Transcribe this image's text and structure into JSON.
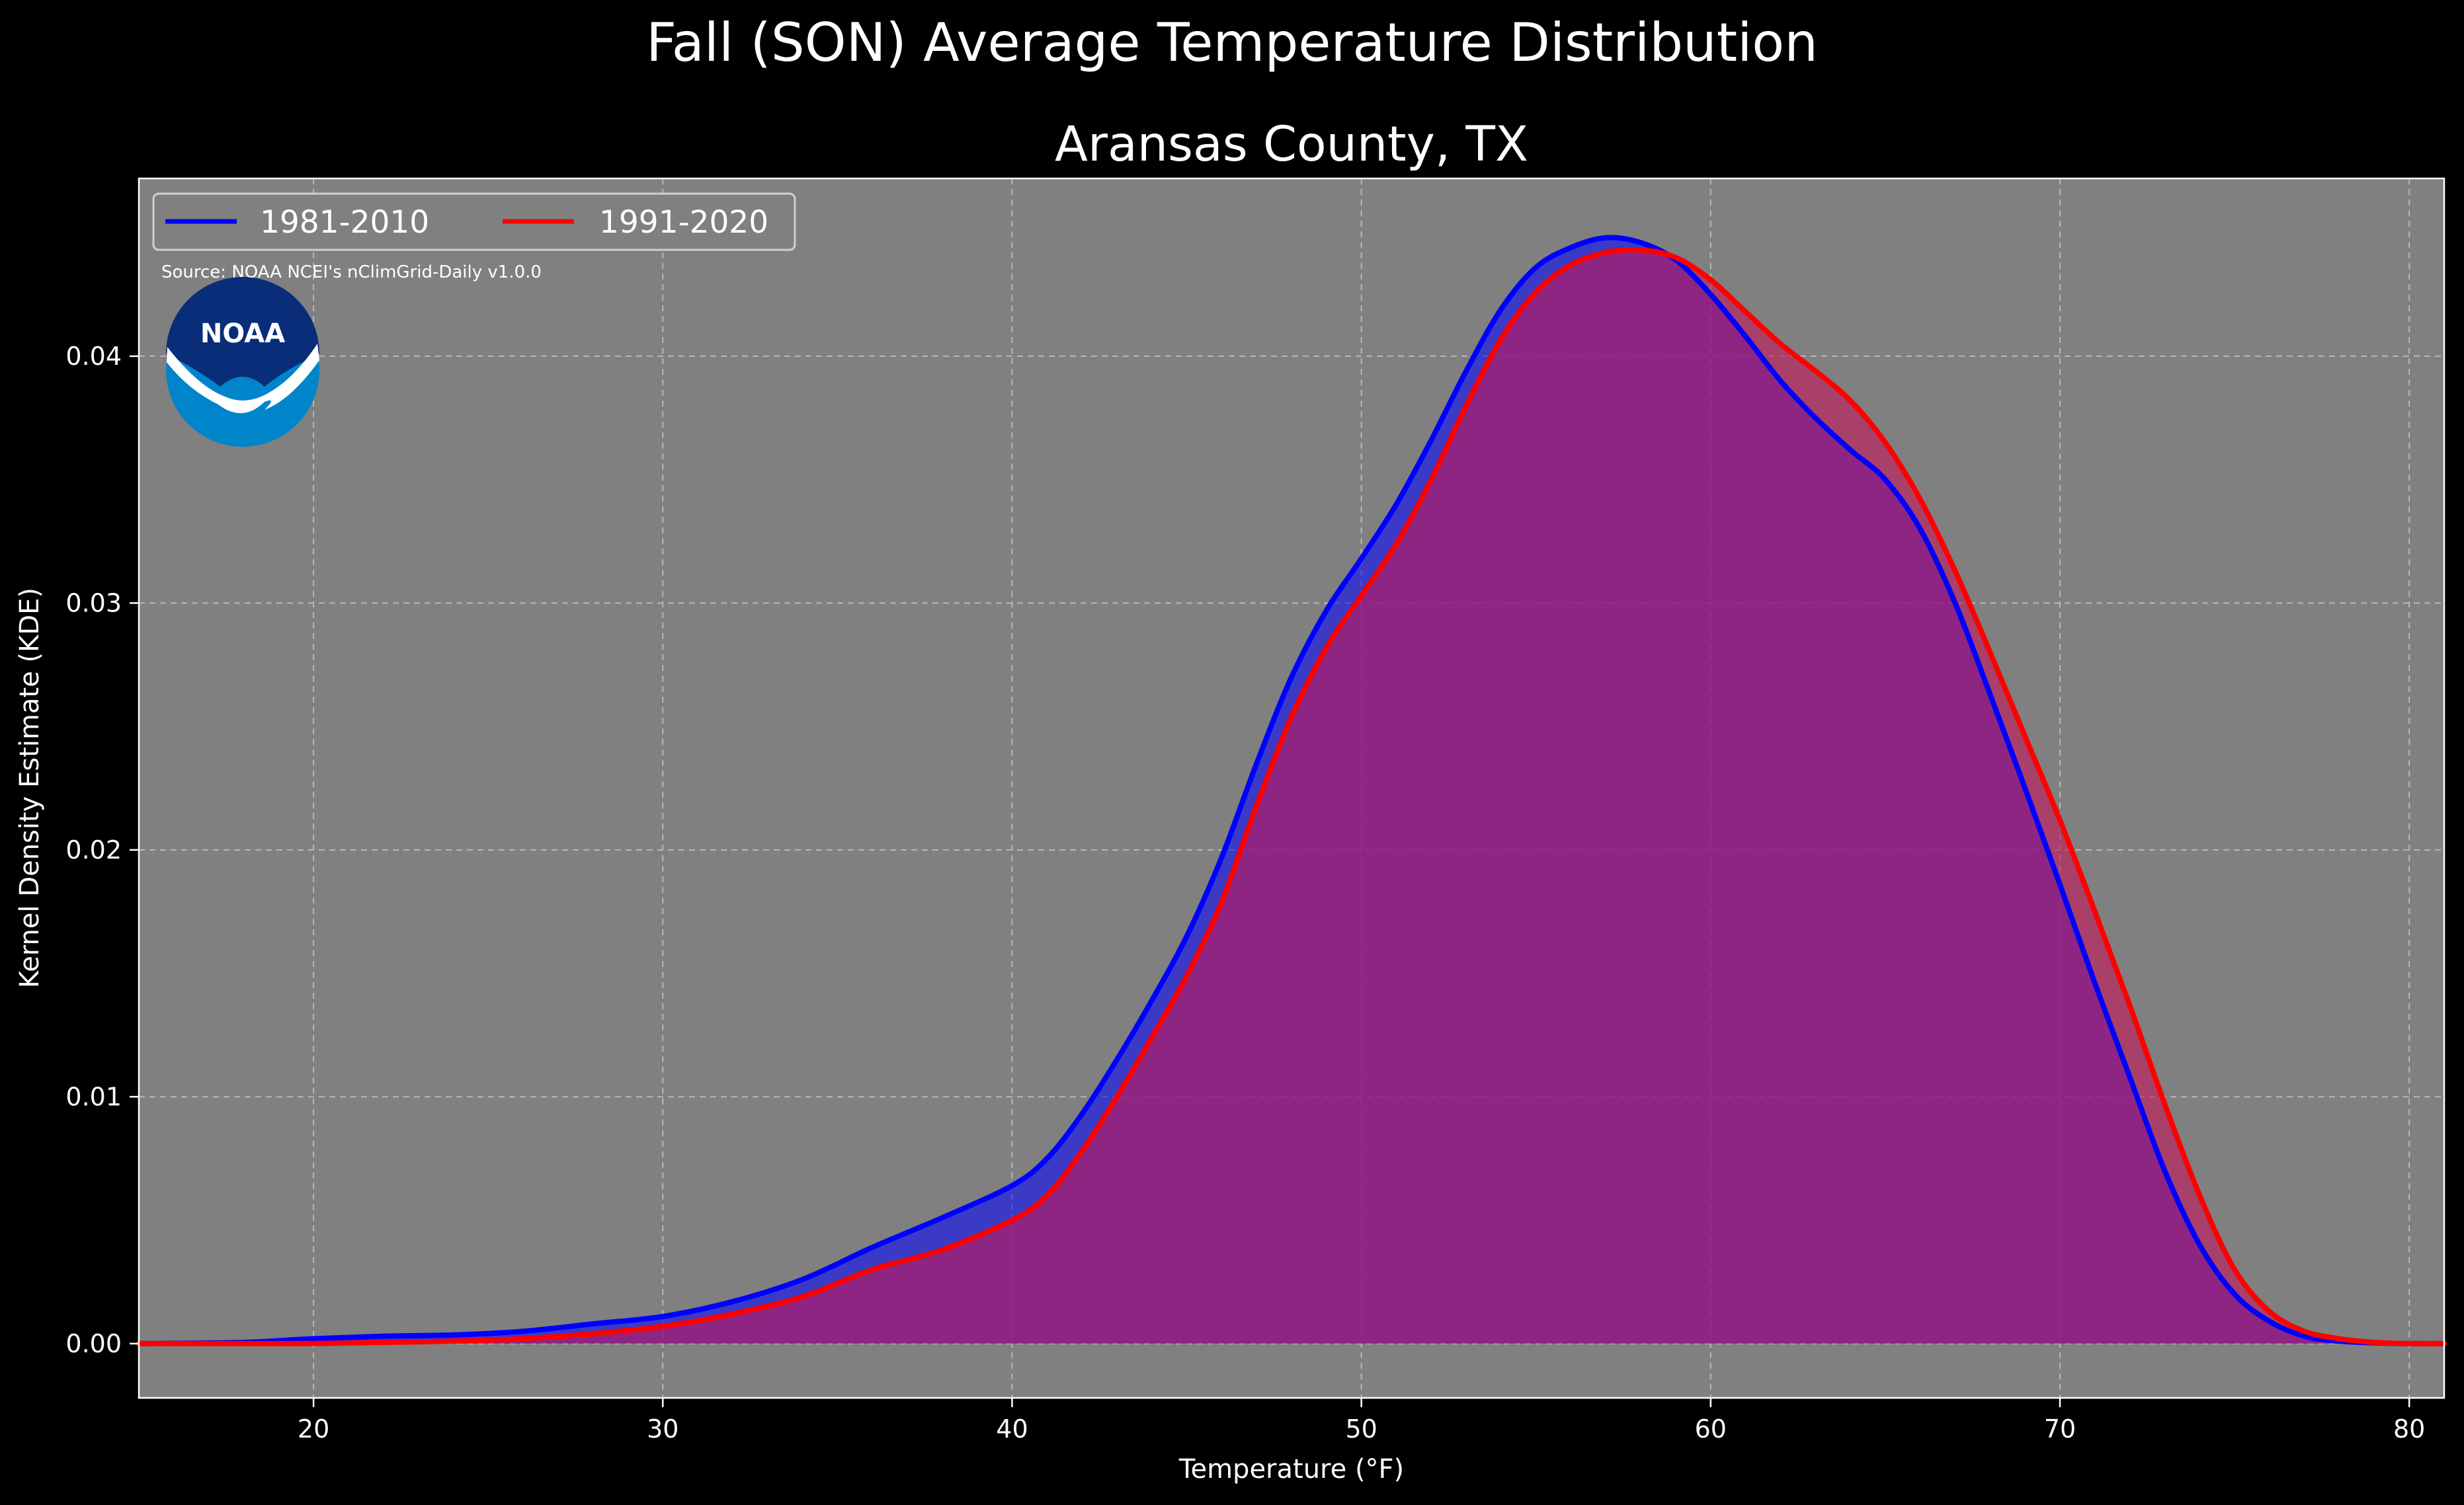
{
  "chart_data": {
    "type": "area",
    "title": "Fall (SON) Average Temperature Distribution",
    "subtitle": "Aransas County, TX",
    "xlabel": "Temperature (°F)",
    "ylabel": "Kernel Density Estimate (KDE)",
    "xlim": [
      15,
      81
    ],
    "ylim": [
      -0.0022,
      0.0472
    ],
    "xticks": [
      20,
      30,
      40,
      50,
      60,
      70,
      80
    ],
    "yticks": [
      0.0,
      0.01,
      0.02,
      0.03,
      0.04
    ],
    "ytick_labels": [
      "0.00",
      "0.01",
      "0.02",
      "0.03",
      "0.04"
    ],
    "grid": true,
    "legend_position": "top-left",
    "source_note": "Source: NOAA NCEI's nClimGrid-Daily v1.0.0",
    "logo_text": "NOAA",
    "background": "#808080",
    "series": [
      {
        "name": "1981-2010",
        "line_color": "#0000ff",
        "fill_color": "#0000ff",
        "x": [
          15,
          18,
          20,
          22,
          24,
          26,
          28,
          30,
          32,
          34,
          36,
          38,
          40,
          41,
          42,
          43,
          44,
          45,
          46,
          47,
          48,
          49,
          50,
          51,
          52,
          53,
          54,
          55,
          56,
          57,
          58,
          59,
          60,
          61,
          62,
          63,
          64,
          65,
          66,
          67,
          68,
          69,
          70,
          71,
          72,
          73,
          74,
          75,
          76,
          77,
          78,
          79,
          80,
          81
        ],
        "y": [
          0.0,
          5e-05,
          0.0002,
          0.0003,
          0.00035,
          0.0005,
          0.0008,
          0.0011,
          0.0017,
          0.0026,
          0.0039,
          0.0051,
          0.0064,
          0.0075,
          0.0093,
          0.0115,
          0.0139,
          0.0165,
          0.0197,
          0.0235,
          0.027,
          0.0297,
          0.0318,
          0.034,
          0.0366,
          0.0394,
          0.0419,
          0.0436,
          0.0444,
          0.0448,
          0.0446,
          0.0439,
          0.0425,
          0.0408,
          0.039,
          0.0375,
          0.0362,
          0.035,
          0.033,
          0.03,
          0.0263,
          0.0225,
          0.0186,
          0.0146,
          0.0108,
          0.007,
          0.004,
          0.002,
          0.0009,
          0.0003,
          0.0001,
          3e-05,
          0.0,
          0.0
        ]
      },
      {
        "name": "1991-2020",
        "line_color": "#ff0000",
        "fill_color": "#c2185b",
        "x": [
          15,
          18,
          20,
          22,
          24,
          26,
          28,
          30,
          32,
          34,
          36,
          38,
          40,
          41,
          42,
          43,
          44,
          45,
          46,
          47,
          48,
          49,
          50,
          51,
          52,
          53,
          54,
          55,
          56,
          57,
          58,
          59,
          60,
          61,
          62,
          63,
          64,
          65,
          66,
          67,
          68,
          69,
          70,
          71,
          72,
          73,
          74,
          75,
          76,
          77,
          78,
          79,
          80,
          81
        ],
        "y": [
          0.0,
          0.0,
          0.0,
          5e-05,
          0.0001,
          0.0002,
          0.0004,
          0.0007,
          0.0012,
          0.0019,
          0.003,
          0.0038,
          0.005,
          0.006,
          0.0078,
          0.01,
          0.0124,
          0.0149,
          0.0179,
          0.0218,
          0.0254,
          0.0282,
          0.0303,
          0.0324,
          0.035,
          0.038,
          0.0407,
          0.0426,
          0.0437,
          0.0442,
          0.0443,
          0.044,
          0.0431,
          0.0418,
          0.0405,
          0.0394,
          0.0382,
          0.0365,
          0.0342,
          0.0313,
          0.028,
          0.0246,
          0.0212,
          0.0175,
          0.0137,
          0.0097,
          0.006,
          0.003,
          0.0013,
          0.0005,
          0.0002,
          5e-05,
          0.0,
          0.0
        ]
      }
    ]
  }
}
